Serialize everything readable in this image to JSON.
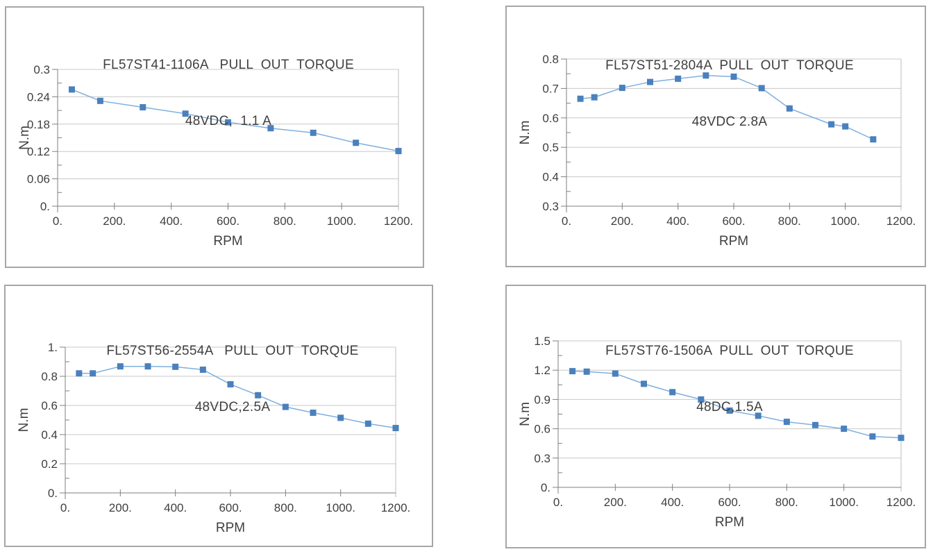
{
  "style": {
    "marker_color": "#4a80bd",
    "line_color": "#7fafdd",
    "grid_color": "#c8c8c8",
    "border_line_color": "#bdbdbd",
    "axis_color": "#7f7f7f",
    "text_color": "#3f3f3f",
    "panel_border_color": "#a6a6a6"
  },
  "chart_data": [
    {
      "type": "line",
      "title": "FL57ST41-1106A   PULL  OUT  TORQUE",
      "subtitle": "48VDC,  1.1 A",
      "xlabel": "RPM",
      "ylabel": "N.m",
      "xlim": [
        0,
        1200
      ],
      "ylim": [
        0,
        0.3
      ],
      "x_ticks": [
        0,
        200,
        400,
        600,
        800,
        1000,
        1200
      ],
      "x_tick_labels": [
        "0.",
        "200.",
        "400.",
        "600.",
        "800.",
        "1000.",
        "1200."
      ],
      "y_ticks": [
        0,
        0.06,
        0.12,
        0.18,
        0.24,
        0.3
      ],
      "y_tick_labels": [
        "0.",
        "0.06",
        "0.12",
        "0.18",
        "0.24",
        "0.3"
      ],
      "grid": "horizontal",
      "legend": "none",
      "x": [
        50,
        150,
        300,
        450,
        600,
        750,
        900,
        1050,
        1200
      ],
      "y": [
        0.256,
        0.231,
        0.217,
        0.203,
        0.184,
        0.171,
        0.161,
        0.139,
        0.121
      ]
    },
    {
      "type": "line",
      "title": "FL57ST51-2804A  PULL  OUT  TORQUE",
      "subtitle": "48VDC 2.8A",
      "xlabel": "RPM",
      "ylabel": "N.m",
      "xlim": [
        0,
        1200
      ],
      "ylim": [
        0.3,
        0.8
      ],
      "x_ticks": [
        0,
        200,
        400,
        600,
        800,
        1000,
        1200
      ],
      "x_tick_labels": [
        "0.",
        "200.",
        "400.",
        "600.",
        "800.",
        "1000.",
        "1200."
      ],
      "y_ticks": [
        0.3,
        0.4,
        0.5,
        0.6,
        0.7,
        0.8
      ],
      "y_tick_labels": [
        "0.3",
        "0.4",
        "0.5",
        "0.6",
        "0.7",
        "0.8"
      ],
      "grid": "horizontal",
      "legend": "none",
      "x": [
        50,
        100,
        200,
        300,
        400,
        500,
        600,
        700,
        800,
        950,
        1000,
        1100
      ],
      "y": [
        0.665,
        0.67,
        0.702,
        0.722,
        0.733,
        0.744,
        0.74,
        0.701,
        0.632,
        0.578,
        0.571,
        0.527
      ]
    },
    {
      "type": "line",
      "title": "FL57ST56-2554A   PULL  OUT  TORQUE",
      "subtitle": "48VDC,2.5A",
      "xlabel": "RPM",
      "ylabel": "N.m",
      "xlim": [
        0,
        1200
      ],
      "ylim": [
        0,
        1
      ],
      "x_ticks": [
        0,
        200,
        400,
        600,
        800,
        1000,
        1200
      ],
      "x_tick_labels": [
        "0.",
        "200.",
        "400.",
        "600.",
        "800.",
        "1000.",
        "1200."
      ],
      "y_ticks": [
        0,
        0.2,
        0.4,
        0.6,
        0.8,
        1
      ],
      "y_tick_labels": [
        "0.",
        "0.2",
        "0.4",
        "0.6",
        "0.8",
        "1."
      ],
      "grid": "horizontal",
      "legend": "none",
      "x": [
        50,
        100,
        200,
        300,
        400,
        500,
        600,
        700,
        800,
        900,
        1000,
        1100,
        1200
      ],
      "y": [
        0.82,
        0.82,
        0.868,
        0.868,
        0.865,
        0.845,
        0.745,
        0.67,
        0.59,
        0.55,
        0.515,
        0.475,
        0.445
      ]
    },
    {
      "type": "line",
      "title": "FL57ST76-1506A  PULL  OUT  TORQUE",
      "subtitle": "48DC,1.5A",
      "xlabel": "RPM",
      "ylabel": "N.m",
      "xlim": [
        0,
        1200
      ],
      "ylim": [
        0,
        1.5
      ],
      "x_ticks": [
        0,
        200,
        400,
        600,
        800,
        1000,
        1200
      ],
      "x_tick_labels": [
        "0.",
        "200.",
        "400.",
        "600.",
        "800.",
        "1000.",
        "1200."
      ],
      "y_ticks": [
        0,
        0.3,
        0.6,
        0.9,
        1.2,
        1.5
      ],
      "y_tick_labels": [
        "0.",
        "0.3",
        "0.6",
        "0.9",
        "1.2",
        "1.5"
      ],
      "grid": "horizontal",
      "legend": "none",
      "x": [
        50,
        100,
        200,
        300,
        400,
        500,
        600,
        700,
        800,
        900,
        1000,
        1100,
        1200
      ],
      "y": [
        1.19,
        1.185,
        1.165,
        1.06,
        0.975,
        0.9,
        0.786,
        0.733,
        0.671,
        0.638,
        0.6,
        0.521,
        0.507
      ]
    }
  ]
}
